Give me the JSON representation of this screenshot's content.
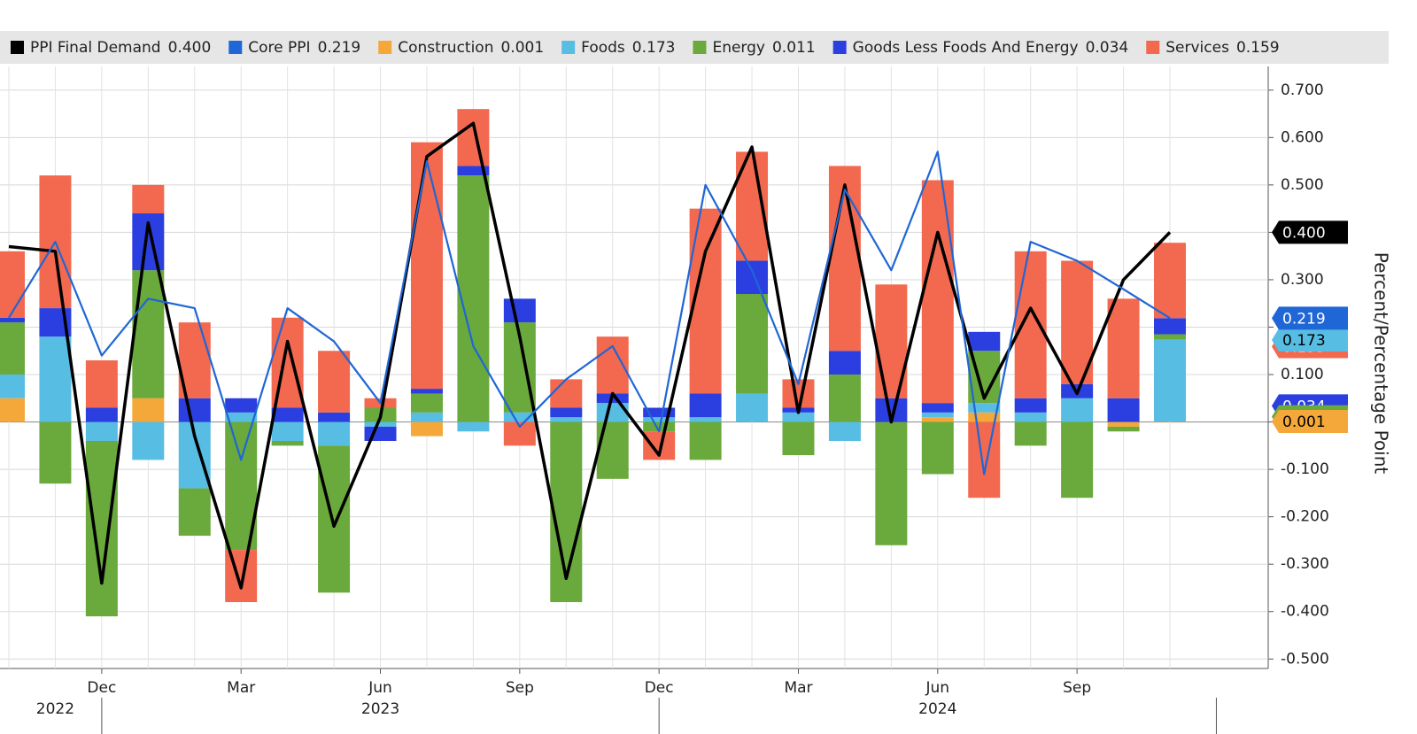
{
  "chart_data": {
    "type": "bar",
    "y_axis_label": "Percent/Percentage Point",
    "categories": [
      null,
      null,
      "Dec",
      null,
      null,
      "Mar",
      null,
      null,
      "Jun",
      null,
      null,
      "Sep",
      null,
      null,
      "Dec",
      null,
      null,
      "Mar",
      null,
      null,
      "Jun",
      null,
      null,
      "Sep",
      null,
      null
    ],
    "x_group_labels": [
      {
        "label": "2022",
        "index": 1
      },
      {
        "label": "2023",
        "index": 8
      },
      {
        "label": "2024",
        "index": 20
      }
    ],
    "ylim": [
      -0.52,
      0.75
    ],
    "yticks": [
      {
        "value": -0.5,
        "label": "-0.500"
      },
      {
        "value": -0.4,
        "label": "-0.400"
      },
      {
        "value": -0.3,
        "label": "-0.300"
      },
      {
        "value": -0.2,
        "label": "-0.200"
      },
      {
        "value": -0.1,
        "label": "-0.100"
      },
      {
        "value": 0,
        "label": "0"
      },
      {
        "value": 0.1,
        "label": "0.100"
      },
      {
        "value": 0.2,
        "label": "0.200"
      },
      {
        "value": 0.3,
        "label": "0.300"
      },
      {
        "value": 0.4,
        "label": "0.400"
      },
      {
        "value": 0.5,
        "label": "0.500"
      },
      {
        "value": 0.6,
        "label": "0.600"
      },
      {
        "value": 0.7,
        "label": "0.700"
      }
    ],
    "grid": true,
    "series": [
      {
        "name": "PPI Final Demand",
        "mark": "line",
        "color": "#000000",
        "last_label": "0.400",
        "values": [
          0.37,
          0.36,
          -0.34,
          0.42,
          -0.03,
          -0.35,
          0.17,
          -0.22,
          0.01,
          0.56,
          0.63,
          0.18,
          -0.33,
          0.06,
          -0.07,
          0.36,
          0.58,
          0.02,
          0.5,
          0.0,
          0.4,
          0.05,
          0.24,
          0.06,
          0.3,
          0.4
        ]
      },
      {
        "name": "Core PPI",
        "mark": "line",
        "color": "#1f66d6",
        "last_label": "0.219",
        "values": [
          0.22,
          0.38,
          0.14,
          0.26,
          0.24,
          -0.08,
          0.24,
          0.17,
          0.04,
          0.55,
          0.16,
          -0.01,
          0.09,
          0.16,
          -0.02,
          0.5,
          0.32,
          0.08,
          0.49,
          0.32,
          0.57,
          -0.11,
          0.38,
          0.34,
          0.28,
          0.219
        ]
      },
      {
        "name": "Construction",
        "mark": "bar",
        "color": "#f5a83a",
        "last_label": "0.001",
        "values": [
          0.05,
          0,
          0,
          0.05,
          0,
          0,
          0,
          0,
          0,
          -0.03,
          0,
          0,
          0,
          0,
          0,
          0,
          0,
          0,
          0,
          0,
          0.01,
          0.02,
          0,
          0,
          -0.01,
          0.001
        ]
      },
      {
        "name": "Foods",
        "mark": "bar",
        "color": "#58bde3",
        "last_label": "0.173",
        "values": [
          0.05,
          0.18,
          -0.04,
          -0.08,
          -0.14,
          0.02,
          -0.04,
          -0.05,
          -0.01,
          0.02,
          -0.02,
          0.02,
          0.01,
          0.04,
          0.01,
          0.01,
          0.06,
          0.02,
          -0.04,
          0,
          0.01,
          0.02,
          0.02,
          0.05,
          0,
          0.173
        ]
      },
      {
        "name": "Energy",
        "mark": "bar",
        "color": "#6aa93c",
        "last_label": "0.011",
        "values": [
          0.11,
          -0.13,
          -0.37,
          0.27,
          -0.1,
          -0.27,
          -0.01,
          -0.31,
          0.03,
          0.04,
          0.52,
          0.19,
          -0.38,
          -0.12,
          -0.02,
          -0.08,
          0.21,
          -0.07,
          0.1,
          -0.26,
          -0.11,
          0.11,
          -0.05,
          -0.16,
          -0.01,
          0.011
        ]
      },
      {
        "name": "Goods Less Foods And Energy",
        "mark": "bar",
        "color": "#2b3fe0",
        "last_label": "0.034",
        "values": [
          0.01,
          0.06,
          0.03,
          0.12,
          0.05,
          0.03,
          0.03,
          0.02,
          -0.03,
          0.01,
          0.02,
          0.05,
          0.02,
          0.02,
          0.02,
          0.05,
          0.07,
          0.01,
          0.05,
          0.05,
          0.02,
          0.04,
          0.03,
          0.03,
          0.05,
          0.034
        ]
      },
      {
        "name": "Services",
        "mark": "bar",
        "color": "#f2694f",
        "last_label": "0.159",
        "values": [
          0.14,
          0.28,
          0.1,
          0.06,
          0.16,
          -0.11,
          0.19,
          0.13,
          0.02,
          0.52,
          0.12,
          -0.05,
          0.06,
          0.12,
          -0.06,
          0.39,
          0.23,
          0.06,
          0.39,
          0.24,
          0.47,
          -0.16,
          0.31,
          0.26,
          0.21,
          0.159
        ]
      }
    ]
  }
}
